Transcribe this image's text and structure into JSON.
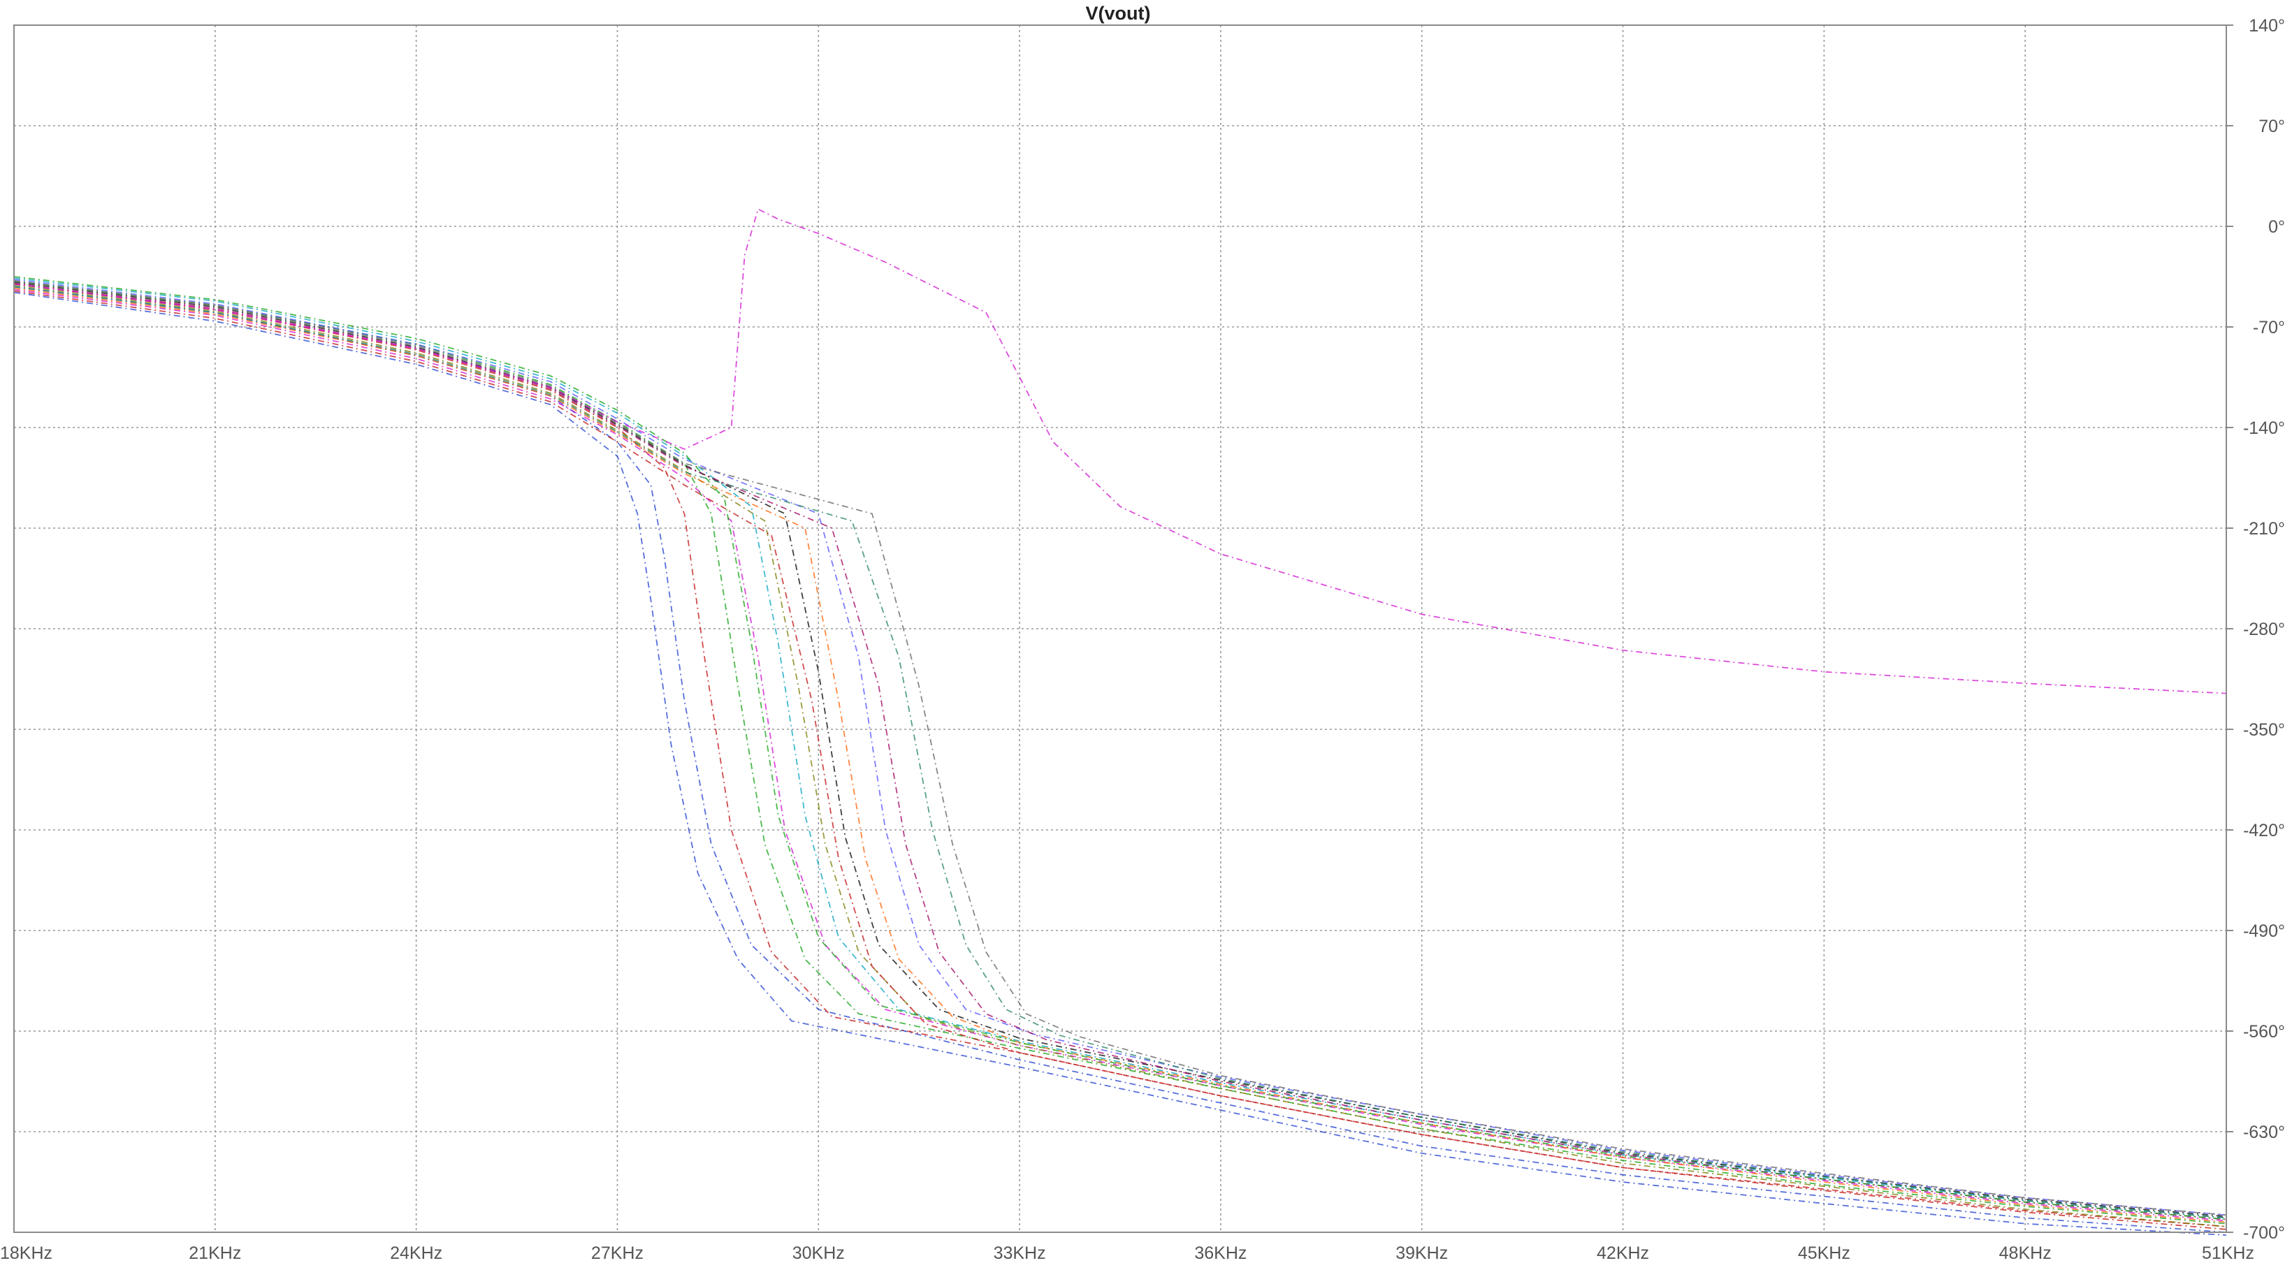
{
  "chart_data": {
    "type": "line",
    "title": "V(vout)",
    "xlabel": "",
    "ylabel": "",
    "x_unit": "Hz",
    "xlim": [
      18000,
      51000
    ],
    "ylim": [
      -700,
      140
    ],
    "x_ticks": [
      {
        "value": 18000,
        "label": "18KHz"
      },
      {
        "value": 21000,
        "label": "21KHz"
      },
      {
        "value": 24000,
        "label": "24KHz"
      },
      {
        "value": 27000,
        "label": "27KHz"
      },
      {
        "value": 30000,
        "label": "30KHz"
      },
      {
        "value": 33000,
        "label": "33KHz"
      },
      {
        "value": 36000,
        "label": "36KHz"
      },
      {
        "value": 39000,
        "label": "39KHz"
      },
      {
        "value": 42000,
        "label": "42KHz"
      },
      {
        "value": 45000,
        "label": "45KHz"
      },
      {
        "value": 48000,
        "label": "48KHz"
      },
      {
        "value": 51000,
        "label": "51KHz"
      }
    ],
    "y_ticks": [
      {
        "value": 140,
        "label": "140°"
      },
      {
        "value": 70,
        "label": "70°"
      },
      {
        "value": 0,
        "label": "0°"
      },
      {
        "value": -70,
        "label": "-70°"
      },
      {
        "value": -140,
        "label": "-140°"
      },
      {
        "value": -210,
        "label": "-210°"
      },
      {
        "value": -280,
        "label": "-280°"
      },
      {
        "value": -350,
        "label": "-350°"
      },
      {
        "value": -420,
        "label": "-420°"
      },
      {
        "value": -490,
        "label": "-490°"
      },
      {
        "value": -560,
        "label": "-560°"
      },
      {
        "value": -630,
        "label": "-630°"
      },
      {
        "value": -700,
        "label": "-700°"
      }
    ],
    "grid": true,
    "legend": "none",
    "line_style": "dash-dot",
    "colors": [
      "#1f3fcf",
      "#c01010",
      "#10a010",
      "#d010d0",
      "#00a0c0",
      "#7a7a00",
      "#000000",
      "#ff6000",
      "#5050ff",
      "#a00060",
      "#208060",
      "#606060"
    ],
    "series": [
      {
        "x": [
          18000,
          21000,
          24000,
          26000,
          27000,
          27500,
          27700,
          28000,
          28400,
          29000,
          30000,
          33000,
          36000,
          39000,
          42000,
          45000,
          48000,
          51000
        ],
        "y": [
          -42,
          -60,
          -90,
          -118,
          -150,
          -180,
          -230,
          -330,
          -430,
          -500,
          -545,
          -580,
          -610,
          -640,
          -660,
          -675,
          -690,
          -700
        ]
      },
      {
        "x": [
          18000,
          21000,
          24000,
          26000,
          27000,
          27700,
          28000,
          28300,
          28700,
          29300,
          30200,
          33000,
          36000,
          39000,
          42000,
          45000,
          48000,
          51000
        ],
        "y": [
          -40,
          -58,
          -86,
          -114,
          -140,
          -168,
          -200,
          -300,
          -420,
          -505,
          -550,
          -575,
          -605,
          -632,
          -655,
          -670,
          -685,
          -696
        ]
      },
      {
        "x": [
          18000,
          21000,
          24000,
          26000,
          27000,
          28000,
          28400,
          28800,
          29200,
          29800,
          30600,
          33000,
          36000,
          39000,
          42000,
          45000,
          48000,
          51000
        ],
        "y": [
          -38,
          -55,
          -82,
          -110,
          -136,
          -165,
          -200,
          -320,
          -430,
          -510,
          -548,
          -572,
          -600,
          -628,
          -650,
          -667,
          -682,
          -694
        ]
      },
      {
        "x": [
          18000,
          21000,
          24000,
          26000,
          27000,
          28000,
          28700,
          29100,
          29500,
          30100,
          31000,
          33000,
          36000,
          39000,
          42000,
          45000,
          48000,
          51000
        ],
        "y": [
          -44,
          -62,
          -92,
          -120,
          -145,
          -175,
          -205,
          -300,
          -420,
          -500,
          -545,
          -570,
          -598,
          -625,
          -648,
          -664,
          -680,
          -692
        ]
      },
      {
        "x": [
          18000,
          21000,
          24000,
          26000,
          27000,
          28000,
          29000,
          29400,
          29800,
          30300,
          31200,
          33000,
          36000,
          39000,
          42000,
          45000,
          48000,
          51000
        ],
        "y": [
          -36,
          -52,
          -80,
          -106,
          -130,
          -160,
          -195,
          -290,
          -410,
          -495,
          -545,
          -567,
          -596,
          -622,
          -646,
          -662,
          -678,
          -690
        ]
      },
      {
        "x": [
          18000,
          21000,
          24000,
          26000,
          27000,
          28000,
          29200,
          29700,
          30100,
          30600,
          31500,
          33000,
          36000,
          39000,
          42000,
          45000,
          48000,
          51000
        ],
        "y": [
          -41,
          -59,
          -88,
          -116,
          -142,
          -170,
          -205,
          -320,
          -430,
          -505,
          -550,
          -570,
          -600,
          -628,
          -652,
          -668,
          -684,
          -696
        ]
      },
      {
        "x": [
          18000,
          21000,
          24000,
          26000,
          27000,
          28000,
          29500,
          30000,
          30400,
          30900,
          31800,
          33000,
          36000,
          39000,
          42000,
          45000,
          48000,
          51000
        ],
        "y": [
          -39,
          -56,
          -84,
          -112,
          -138,
          -166,
          -200,
          -310,
          -425,
          -500,
          -545,
          -565,
          -594,
          -620,
          -645,
          -661,
          -677,
          -689
        ]
      },
      {
        "x": [
          18000,
          21000,
          24000,
          26000,
          27000,
          28000,
          29800,
          30300,
          30700,
          31200,
          32000,
          33000,
          36000,
          39000,
          42000,
          45000,
          48000,
          51000
        ],
        "y": [
          -43,
          -61,
          -90,
          -118,
          -144,
          -172,
          -210,
          -330,
          -440,
          -510,
          -550,
          -568,
          -597,
          -624,
          -648,
          -665,
          -681,
          -693
        ]
      },
      {
        "x": [
          18000,
          21000,
          24000,
          26000,
          27000,
          28000,
          30000,
          30600,
          31000,
          31500,
          32200,
          33200,
          36000,
          39000,
          42000,
          45000,
          48000,
          51000
        ],
        "y": [
          -37,
          -54,
          -82,
          -108,
          -134,
          -162,
          -200,
          -300,
          -420,
          -500,
          -545,
          -562,
          -592,
          -618,
          -643,
          -660,
          -676,
          -688
        ]
      },
      {
        "x": [
          18000,
          21000,
          24000,
          26000,
          27000,
          28000,
          30200,
          30900,
          31300,
          31800,
          32500,
          33400,
          36000,
          39000,
          42000,
          45000,
          48000,
          51000
        ],
        "y": [
          -40,
          -57,
          -85,
          -113,
          -139,
          -167,
          -210,
          -320,
          -430,
          -505,
          -548,
          -566,
          -595,
          -622,
          -646,
          -663,
          -679,
          -691
        ]
      },
      {
        "x": [
          18000,
          21000,
          24000,
          26000,
          27000,
          28000,
          30500,
          31200,
          31700,
          32200,
          32800,
          33600,
          36000,
          39000,
          42000,
          45000,
          48000,
          51000
        ],
        "y": [
          -42,
          -60,
          -89,
          -117,
          -143,
          -171,
          -205,
          -300,
          -420,
          -500,
          -545,
          -563,
          -593,
          -620,
          -644,
          -661,
          -678,
          -690
        ]
      },
      {
        "x": [
          18000,
          21000,
          24000,
          26000,
          27000,
          28000,
          30800,
          31500,
          32000,
          32500,
          33100,
          33900,
          36000,
          39000,
          42000,
          45000,
          48000,
          51000
        ],
        "y": [
          -38,
          -55,
          -83,
          -111,
          -137,
          -165,
          -200,
          -320,
          -430,
          -505,
          -548,
          -564,
          -591,
          -618,
          -642,
          -659,
          -676,
          -688
        ]
      },
      {
        "x": [
          18000,
          21000,
          24000,
          26000,
          27000,
          27300,
          27500,
          27800,
          28200,
          28800,
          29600,
          33000,
          36000,
          39000,
          42000,
          45000,
          48000,
          51000
        ],
        "y": [
          -46,
          -66,
          -96,
          -124,
          -160,
          -200,
          -260,
          -360,
          -450,
          -510,
          -553,
          -585,
          -615,
          -645,
          -665,
          -680,
          -694,
          -702
        ]
      },
      {
        "x": [
          18000,
          21000,
          24000,
          26000,
          27000,
          28000,
          29300,
          29900,
          30300,
          30800,
          31600,
          33000,
          36000,
          39000,
          42000,
          45000,
          48000,
          51000
        ],
        "y": [
          -45,
          -64,
          -94,
          -122,
          -150,
          -180,
          -215,
          -330,
          -440,
          -515,
          -555,
          -575,
          -605,
          -632,
          -655,
          -671,
          -686,
          -698
        ]
      },
      {
        "x": [
          18000,
          21000,
          24000,
          26000,
          27000,
          28000,
          28600,
          29000,
          29400,
          30000,
          30900,
          33000,
          36000,
          39000,
          42000,
          45000,
          48000,
          51000
        ],
        "y": [
          -35,
          -51,
          -78,
          -104,
          -128,
          -158,
          -190,
          -290,
          -410,
          -495,
          -542,
          -568,
          -598,
          -624,
          -647,
          -663,
          -679,
          -691
        ]
      },
      {
        "x": [
          18000,
          21000,
          24000,
          26000,
          27000,
          28000,
          28700,
          28900,
          29100,
          29400,
          30000,
          31000,
          32500,
          33500,
          34500,
          36000,
          39000,
          42000,
          45000,
          48000,
          51000
        ],
        "y": [
          -40,
          -58,
          -85,
          -112,
          -136,
          -155,
          -140,
          -20,
          12,
          5,
          -5,
          -25,
          -60,
          -150,
          -195,
          -228,
          -270,
          -295,
          -310,
          -318,
          -325
        ]
      }
    ]
  }
}
